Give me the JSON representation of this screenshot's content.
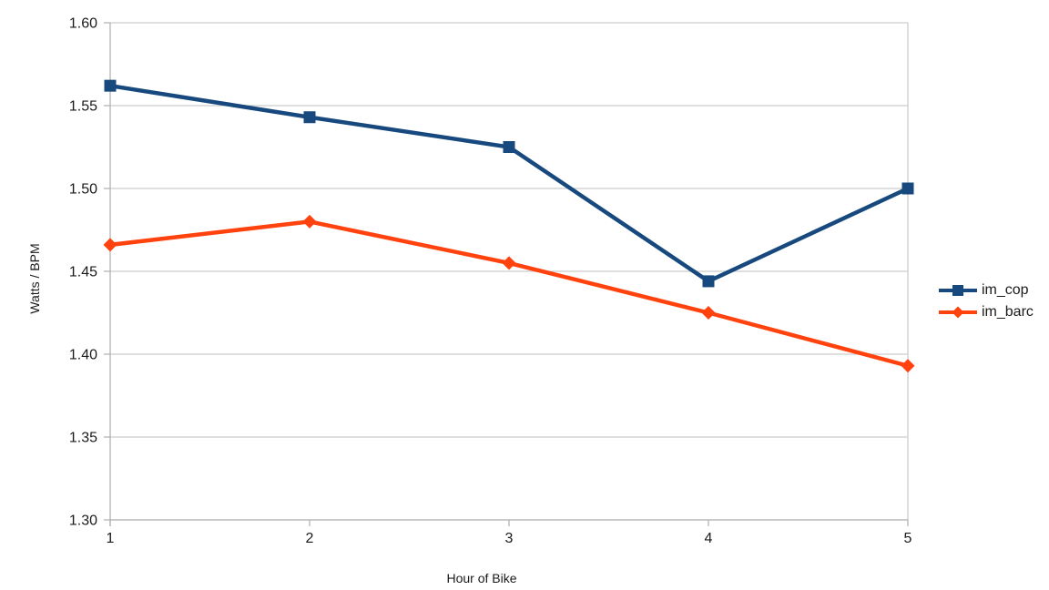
{
  "chart_data": {
    "type": "line",
    "title": "",
    "xlabel": "Hour of Bike",
    "ylabel": "Watts / BPM",
    "x": [
      1,
      2,
      3,
      4,
      5
    ],
    "xtick_labels": [
      "1",
      "2",
      "3",
      "4",
      "5"
    ],
    "ytick_labels": [
      "1.60",
      "1.55",
      "1.50",
      "1.45",
      "1.40",
      "1.35",
      "1.30"
    ],
    "ylim": [
      1.3,
      1.6
    ],
    "ytick_step": 0.05,
    "grid": "horizontal",
    "legend_position": "right",
    "series": [
      {
        "name": "im_cop",
        "marker": "square",
        "color": "#17497E",
        "values": [
          1.562,
          1.543,
          1.525,
          1.444,
          1.5
        ]
      },
      {
        "name": "im_barc",
        "marker": "diamond",
        "color": "#FF420E",
        "values": [
          1.466,
          1.48,
          1.455,
          1.425,
          1.393
        ]
      }
    ],
    "colors": {
      "gridline": "#CCCCCC",
      "axis": "#B3B3B3",
      "text": "#1A1A1A",
      "background": "#FFFFFF"
    }
  }
}
